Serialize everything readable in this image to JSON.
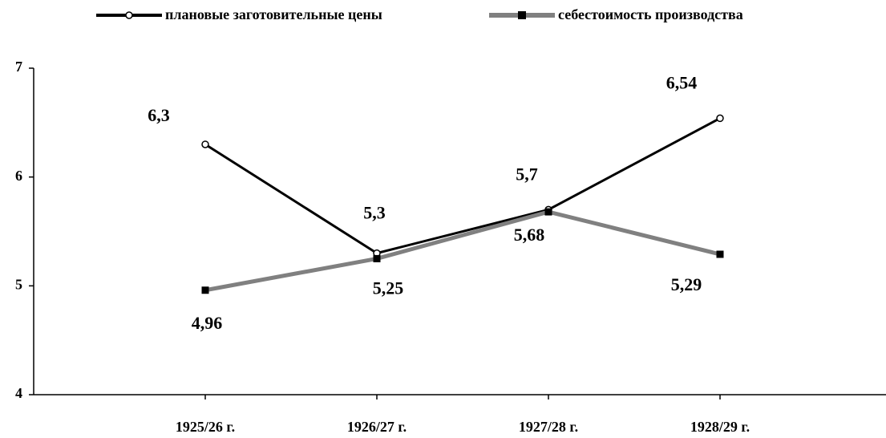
{
  "chart_data": {
    "type": "line",
    "categories": [
      "1925/26 г.",
      "1926/27 г.",
      "1927/28 г.",
      "1928/29 г."
    ],
    "series": [
      {
        "name": "плановые заготовительные цены",
        "color": "#000000",
        "values": [
          6.3,
          5.3,
          5.7,
          6.54
        ],
        "value_labels": [
          "6,3",
          "5,3",
          "5,7",
          "6,54"
        ]
      },
      {
        "name": "себестоимость производства",
        "color": "#808080",
        "values": [
          4.96,
          5.25,
          5.68,
          5.29
        ],
        "value_labels": [
          "4,96",
          "5,25",
          "5,68",
          "5,29"
        ]
      }
    ],
    "ylim": [
      4,
      7
    ],
    "yticks": [
      4,
      5,
      6,
      7
    ],
    "grid": false
  }
}
